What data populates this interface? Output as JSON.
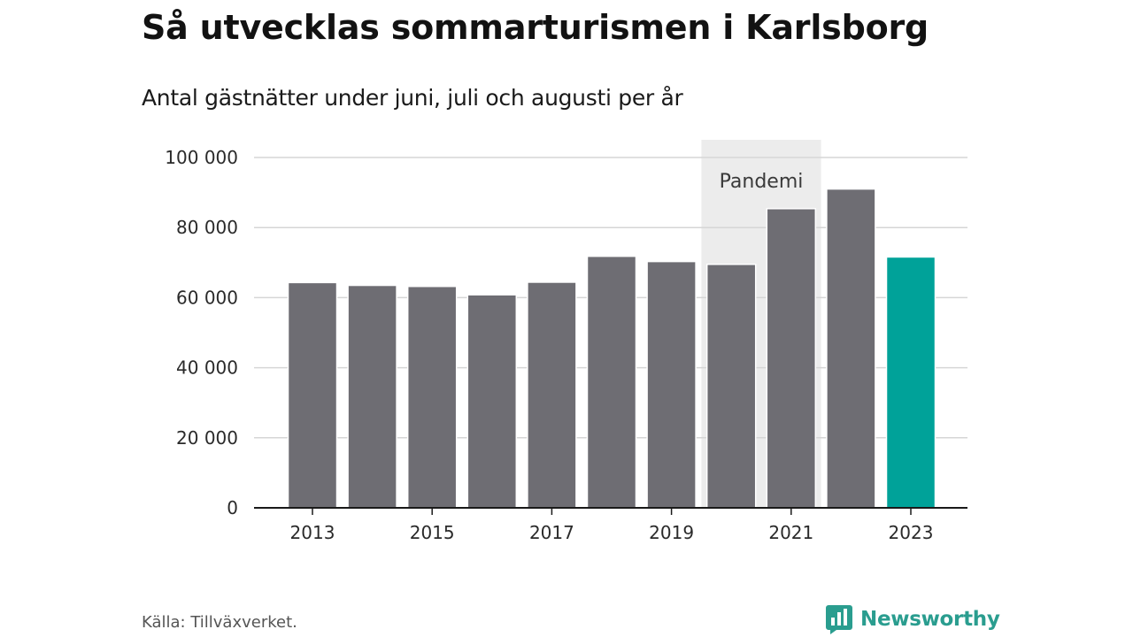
{
  "header": {
    "title": "Så utvecklas sommarturismen i Karlsborg",
    "subtitle": "Antal gästnätter under juni, juli och augusti per år"
  },
  "footer": {
    "source": "Källa: Tillväxverket.",
    "brand": "Newsworthy",
    "brand_icon": "newsworthy-logo-icon"
  },
  "colors": {
    "bar": "#6e6d73",
    "highlight": "#00a299",
    "grid": "#d6d6d6",
    "axis": "#1a1a1a",
    "band": "#ececec",
    "brand": "#2a9d8f"
  },
  "chart_data": {
    "type": "bar",
    "categories": [
      "2013",
      "2014",
      "2015",
      "2016",
      "2017",
      "2018",
      "2019",
      "2020",
      "2021",
      "2022",
      "2023"
    ],
    "values": [
      64300,
      63500,
      63200,
      60800,
      64400,
      71800,
      70300,
      69500,
      85400,
      91000,
      71600
    ],
    "highlight_index": 10,
    "x_tick_labels": [
      "2013",
      "2015",
      "2017",
      "2019",
      "2021",
      "2023"
    ],
    "y_ticks": [
      0,
      20000,
      40000,
      60000,
      80000,
      100000
    ],
    "y_tick_labels": [
      "0",
      "20 000",
      "40 000",
      "60 000",
      "80 000",
      "100 000"
    ],
    "ylim": [
      0,
      100000
    ],
    "grid": true,
    "annotation": {
      "label": "Pandemi",
      "from": "2020",
      "to": "2021"
    },
    "title": "Så utvecklas sommarturismen i Karlsborg",
    "subtitle": "Antal gästnätter under juni, juli och augusti per år",
    "xlabel": "",
    "ylabel": ""
  }
}
